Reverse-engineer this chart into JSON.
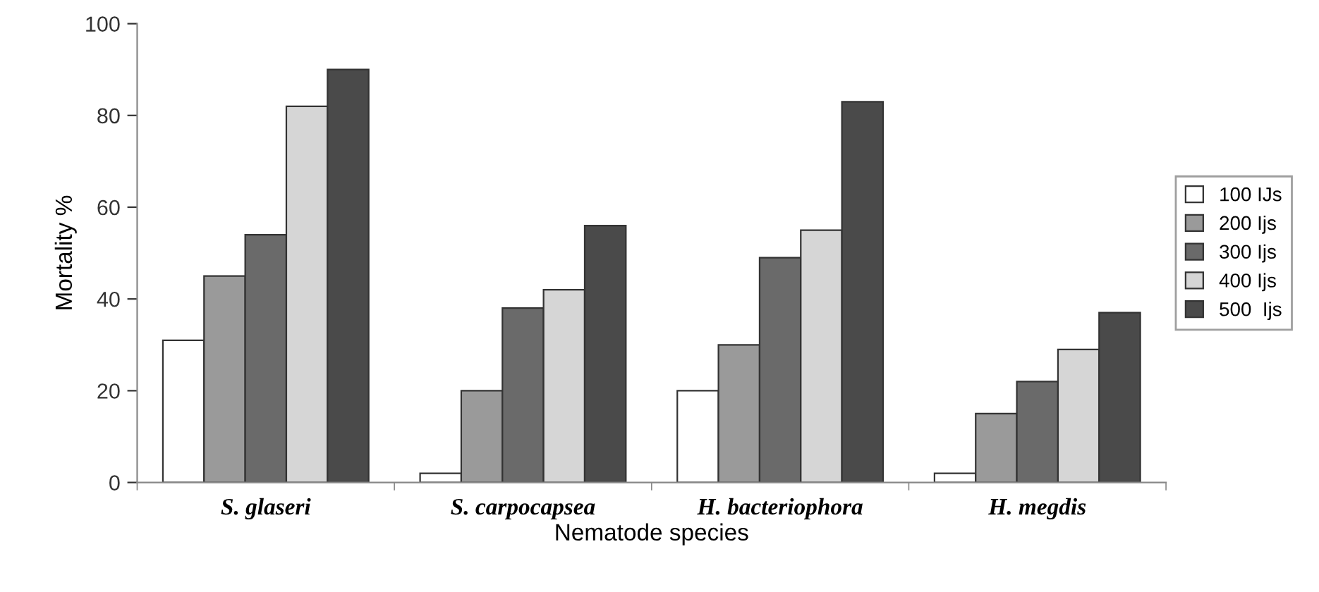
{
  "chart_data": {
    "type": "bar",
    "xlabel": "Nematode species",
    "ylabel": "Mortality %",
    "categories": [
      "S. glaseri",
      "S. carpocapsea",
      "H. bacteriophora",
      "H. megdis"
    ],
    "series": [
      {
        "name": "100 IJs",
        "color": "#ffffff",
        "values": [
          31,
          2,
          20,
          2
        ]
      },
      {
        "name": "200 Ijs",
        "color": "#9a9a9a",
        "values": [
          45,
          20,
          30,
          15
        ]
      },
      {
        "name": "300 Ijs",
        "color": "#6a6a6a",
        "values": [
          54,
          38,
          49,
          22
        ]
      },
      {
        "name": "400 Ijs",
        "color": "#d6d6d6",
        "values": [
          82,
          42,
          55,
          29
        ]
      },
      {
        "name": "500  Ijs",
        "color": "#4a4a4a",
        "values": [
          90,
          56,
          83,
          37
        ]
      }
    ],
    "ylim": [
      0,
      100
    ],
    "yticks": [
      0,
      20,
      40,
      60,
      80,
      100
    ],
    "grid": false,
    "legend": "right"
  }
}
